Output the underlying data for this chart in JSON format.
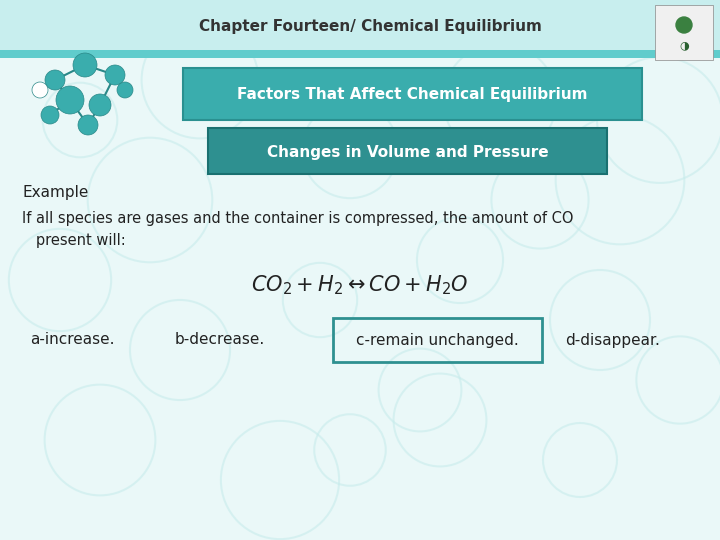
{
  "header_text": "Chapter Fourteen/ Chemical Equilibrium",
  "header_bg_top": "#B8ECEC",
  "header_bg_mid": "#7DD8D8",
  "header_stripe": "#4BBCBC",
  "slide_bg": "#DAFAFAFA",
  "box1_text": "Factors That Affect Chemical Equilibrium",
  "box1_bg": "#3AADAD",
  "box1_edge": "#2A9090",
  "box1_text_color": "#FFFFFF",
  "box2_text": "Changes in Volume and Pressure",
  "box2_bg": "#2E9090",
  "box2_edge": "#1A7070",
  "box2_text_color": "#FFFFFF",
  "example_label": "Example",
  "body_text1": "If all species are gases and the container is compressed, the amount of CO",
  "body_text2": "   present will:",
  "equation": "$CO_2 + H_2 \\leftrightarrow CO + H_2O$",
  "answer_a": "a-increase.",
  "answer_b": "b-decrease.",
  "answer_c": "c-remain unchanged.",
  "answer_d": "d-disappear.",
  "answer_c_box_color": "#2E9090",
  "text_color": "#222222",
  "hex_color": "#C5EBEB",
  "header_text_color": "#333333"
}
